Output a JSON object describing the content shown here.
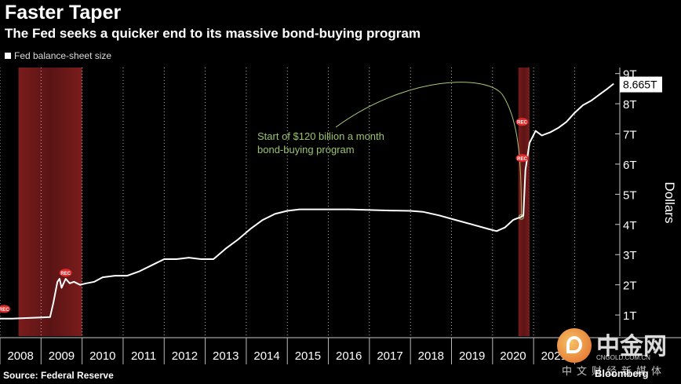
{
  "header": {
    "title": "Faster Taper",
    "subtitle": "The Fed seeks a quicker end to its massive bond-buying program"
  },
  "footer": {
    "source": "Source: Federal Reserve",
    "brand": "Bloomberg"
  },
  "watermark": {
    "name": "中金网",
    "url": "CNGOLD.COM.CN",
    "tagline": "中文财经新媒体"
  },
  "chart_data": {
    "type": "line",
    "title": "Faster Taper",
    "subtitle": "The Fed seeks a quicker end to its massive bond-buying program",
    "ylabel": "Dollars",
    "ylim": [
      0.3,
      9.2
    ],
    "xlim": [
      2007.5,
      2022.6
    ],
    "y_ticks": [
      "1T",
      "2T",
      "3T",
      "4T",
      "5T",
      "6T",
      "7T",
      "8T",
      "9T"
    ],
    "y_tick_values": [
      1,
      2,
      3,
      4,
      5,
      6,
      7,
      8,
      9
    ],
    "x_ticks": [
      "2008",
      "2009",
      "2010",
      "2011",
      "2012",
      "2013",
      "2014",
      "2015",
      "2016",
      "2017",
      "2018",
      "2019",
      "2020",
      "2021"
    ],
    "grid": true,
    "legend_position": "top-left",
    "series": [
      {
        "name": "Fed balance-sheet size",
        "color": "#ffffff",
        "last_value_label": "8.665T",
        "x": [
          2007.5,
          2007.8,
          2008.2,
          2008.5,
          2008.72,
          2008.8,
          2008.9,
          2008.95,
          2009.0,
          2009.1,
          2009.2,
          2009.3,
          2009.45,
          2009.6,
          2009.8,
          2010.0,
          2010.3,
          2010.6,
          2010.9,
          2011.2,
          2011.5,
          2011.8,
          2012.1,
          2012.4,
          2012.7,
          2013.0,
          2013.3,
          2013.6,
          2013.9,
          2014.2,
          2014.5,
          2014.8,
          2015.0,
          2015.5,
          2016.0,
          2016.5,
          2017.0,
          2017.5,
          2017.8,
          2018.2,
          2018.6,
          2019.0,
          2019.4,
          2019.6,
          2019.8,
          2020.0,
          2020.1,
          2020.2,
          2020.25,
          2020.3,
          2020.4,
          2020.55,
          2020.7,
          2020.9,
          2021.1,
          2021.3,
          2021.5,
          2021.7,
          2021.9,
          2022.1,
          2022.3,
          2022.45
        ],
        "values": [
          0.88,
          0.88,
          0.9,
          0.92,
          0.93,
          1.4,
          2.1,
          2.2,
          1.9,
          2.2,
          2.05,
          2.1,
          2.0,
          2.05,
          2.1,
          2.25,
          2.3,
          2.3,
          2.45,
          2.65,
          2.85,
          2.85,
          2.9,
          2.85,
          2.85,
          3.2,
          3.5,
          3.85,
          4.15,
          4.35,
          4.45,
          4.5,
          4.5,
          4.5,
          4.5,
          4.48,
          4.46,
          4.45,
          4.42,
          4.3,
          4.15,
          4.0,
          3.85,
          3.78,
          3.9,
          4.15,
          4.2,
          4.25,
          4.3,
          5.8,
          6.7,
          7.1,
          6.95,
          7.05,
          7.2,
          7.4,
          7.7,
          7.95,
          8.1,
          8.3,
          8.5,
          8.665
        ]
      }
    ],
    "recessions": [
      {
        "start": 2007.95,
        "end": 2009.5
      },
      {
        "start": 2020.13,
        "end": 2020.4
      }
    ],
    "recession_marker_label": "REC",
    "annotations": [
      {
        "text": "Start of $120 billion a month",
        "line2": "bond-buying program",
        "x": 2020.2,
        "y": 4.25
      }
    ]
  }
}
